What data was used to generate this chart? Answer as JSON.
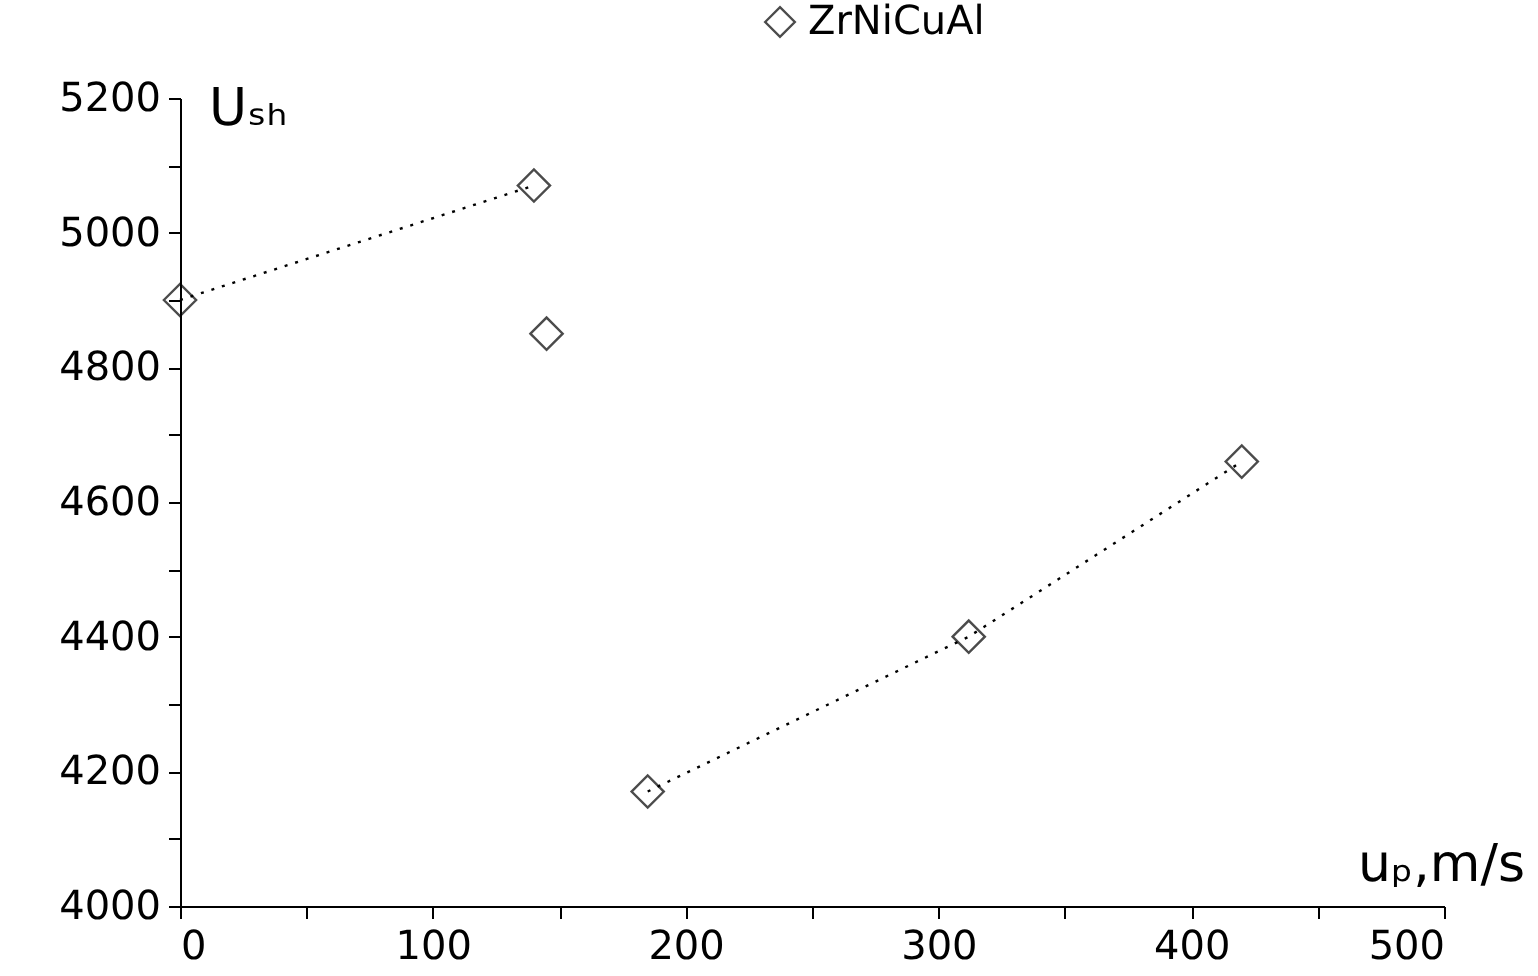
{
  "chart_data": {
    "type": "scatter",
    "xlabel": "uₚ,m/s",
    "ylabel": "Uₛₕ",
    "xlim": [
      0,
      500
    ],
    "ylim": [
      4000,
      5200
    ],
    "xticks": [
      0,
      {
        "value": 50,
        "label": null
      },
      100,
      {
        "value": 150,
        "label": null
      },
      200,
      {
        "value": 250,
        "label": null
      },
      300,
      {
        "value": 350,
        "label": null
      },
      400,
      {
        "value": 450,
        "label": null
      },
      500
    ],
    "yticks": [
      4000,
      {
        "value": 4100,
        "label": null
      },
      4200,
      {
        "value": 4300,
        "label": null
      },
      4400,
      {
        "value": 4500,
        "label": null
      },
      4600,
      {
        "value": 4700,
        "label": null
      },
      4800,
      {
        "value": 4900,
        "label": null
      },
      5000,
      {
        "value": 5100,
        "label": null
      },
      5200
    ],
    "grid": false,
    "legend": "top",
    "marker": "diamond",
    "series": [
      {
        "name": "ZrNiCuAl",
        "color": "#000000",
        "x": [
          0,
          140,
          145,
          185,
          312,
          420
        ],
        "values": [
          4900,
          5070,
          4850,
          4170,
          4400,
          4660
        ]
      },
      {
        "type": "line",
        "color": "#000000",
        "line_style": "dotted",
        "marker": "none",
        "x": [
          0,
          140
        ],
        "values": [
          4900,
          5070
        ]
      },
      {
        "type": "line",
        "color": "#000000",
        "line_style": "dotted",
        "marker": "none",
        "x": [
          185,
          312,
          420
        ],
        "values": [
          4170,
          4400,
          4660
        ]
      }
    ]
  }
}
